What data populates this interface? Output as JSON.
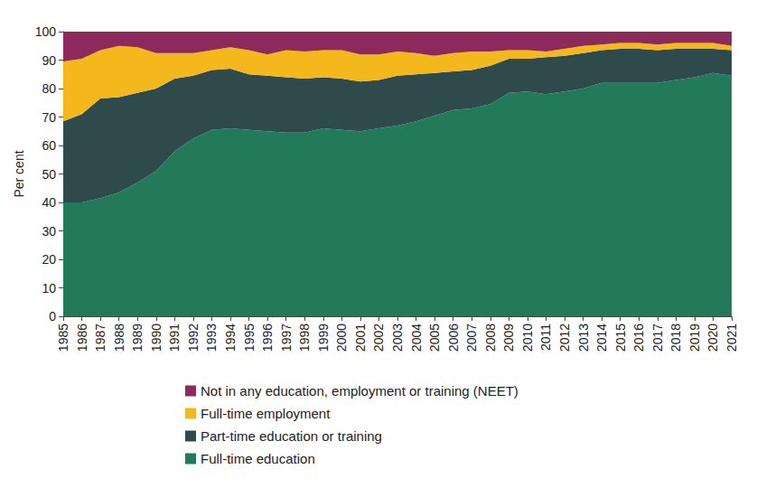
{
  "chart_data": {
    "type": "area",
    "stacked": true,
    "grid": false,
    "legend": "bottom",
    "y_label": "Per cent",
    "ylim": [
      0,
      100
    ],
    "yticks": [
      0,
      10,
      20,
      30,
      40,
      50,
      60,
      70,
      80,
      90,
      100
    ],
    "categories": [
      "1985",
      "1986",
      "1987",
      "1988",
      "1989",
      "1990",
      "1991",
      "1992",
      "1993",
      "1994",
      "1995",
      "1996",
      "1997",
      "1998",
      "1999",
      "2000",
      "2001",
      "2002",
      "2003",
      "2004",
      "2005",
      "2006",
      "2007",
      "2008",
      "2009",
      "2010",
      "2011",
      "2012",
      "2013",
      "2014",
      "2015",
      "2016",
      "2017",
      "2018",
      "2019",
      "2020",
      "2021"
    ],
    "series": [
      {
        "name": "Full-time education",
        "color": "#237a5a",
        "values": [
          40,
          40,
          41.5,
          43.5,
          47,
          51,
          58,
          62.5,
          65.5,
          66,
          65.5,
          65,
          64.5,
          64.5,
          66,
          65.5,
          65,
          66,
          67,
          68.5,
          70.5,
          72.5,
          73,
          74.5,
          78.5,
          79,
          78,
          79,
          80,
          82,
          82,
          82,
          82,
          83,
          84,
          85.5,
          84.5
        ]
      },
      {
        "name": "Part-time education or training",
        "color": "#2e4a4a",
        "values": [
          28.5,
          31,
          35,
          33.5,
          31.5,
          29,
          25.5,
          22,
          21,
          21,
          19.5,
          19.5,
          19.5,
          19,
          18,
          18,
          17.5,
          17,
          17.5,
          16.5,
          15,
          13.5,
          13.5,
          13.5,
          12,
          11.5,
          13,
          12.5,
          12.5,
          11.5,
          12,
          12,
          11.5,
          11,
          10,
          8.5,
          9
        ]
      },
      {
        "name": "Full-time employment",
        "color": "#f5b81c",
        "values": [
          21,
          19.5,
          17,
          18,
          16,
          12.5,
          9,
          8,
          7,
          7.5,
          8.5,
          7.5,
          9.5,
          9.5,
          9.5,
          10,
          9.5,
          9,
          8.5,
          7.5,
          6,
          6.5,
          6.5,
          5,
          3,
          3,
          2,
          2.5,
          2.5,
          2,
          2,
          2,
          2,
          2,
          2,
          2,
          1.5
        ]
      },
      {
        "name": "Not in any education, employment or training (NEET)",
        "color": "#8b2a5b",
        "values": [
          10.5,
          9.5,
          6.5,
          5,
          5.5,
          7.5,
          7.5,
          7.5,
          6.5,
          5.5,
          6.5,
          8,
          6.5,
          7,
          6.5,
          6.5,
          8,
          8,
          7,
          7.5,
          8.5,
          7.5,
          7,
          7,
          6.5,
          6.5,
          7,
          6,
          5,
          4.5,
          4,
          4,
          4.5,
          4,
          4,
          4,
          5
        ]
      }
    ]
  }
}
